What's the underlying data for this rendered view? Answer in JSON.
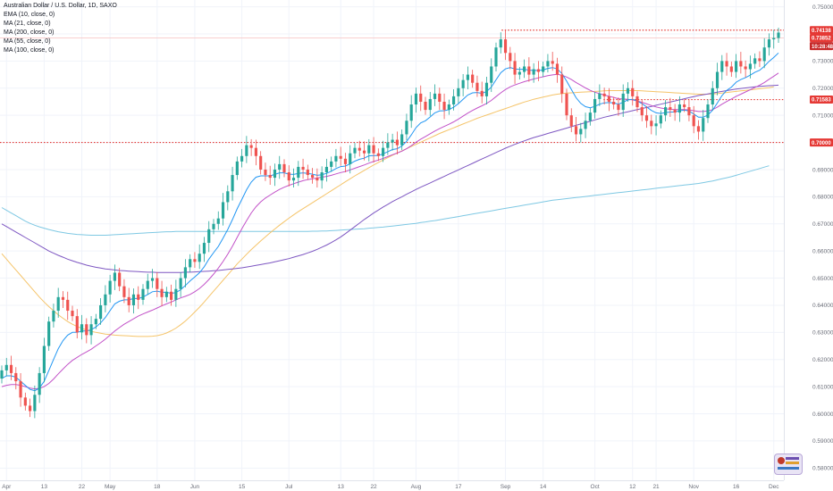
{
  "legend": {
    "title": "Australian Dollar / U.S. Dollar, 1D, SAXO",
    "indicators": [
      "EMA (10, close, 0)",
      "MA (21, close, 0)",
      "MA (200, close, 0)",
      "MA (55, close, 0)",
      "MA (100, close, 0)"
    ]
  },
  "colors": {
    "up": "#26a69a",
    "down": "#ef5350",
    "ema10": "#2196f3",
    "ma21": "#c252c8",
    "ma200": "#7ec8e3",
    "ma55": "#f5c469",
    "ma100": "#7e57c2",
    "level_line": "#e53935"
  },
  "chart_data": {
    "type": "candlestick",
    "title": "Australian Dollar / U.S. Dollar, 1D, SAXO",
    "ylim": [
      0.5755,
      0.7525
    ],
    "y_ticks": [
      "0.75000",
      "0.74000",
      "0.73000",
      "0.72000",
      "0.71000",
      "0.70000",
      "0.69000",
      "0.68000",
      "0.67000",
      "0.66000",
      "0.65000",
      "0.64000",
      "0.63000",
      "0.62000",
      "0.61000",
      "0.60000",
      "0.59000",
      "0.58000"
    ],
    "x_labels": [
      "Apr",
      "13",
      "22",
      "May",
      "18",
      "Jun",
      "15",
      "Jul",
      "13",
      "22",
      "Aug",
      "17",
      "Sep",
      "14",
      "Oct",
      "12",
      "21",
      "Nov",
      "16",
      "Dec"
    ],
    "price_tags": [
      {
        "label": "0.74138",
        "value": 0.74138
      },
      {
        "label": "0.73852",
        "value": 0.73852
      },
      {
        "label": "10:28:48",
        "value": 0.7355
      },
      {
        "label": "0.71583",
        "value": 0.71583
      },
      {
        "label": "0.70000",
        "value": 0.7
      }
    ],
    "levels": [
      0.7414,
      0.7158,
      0.7
    ],
    "closes": [
      0.616,
      0.618,
      0.615,
      0.612,
      0.606,
      0.603,
      0.601,
      0.607,
      0.615,
      0.625,
      0.634,
      0.638,
      0.643,
      0.642,
      0.638,
      0.636,
      0.63,
      0.633,
      0.629,
      0.633,
      0.635,
      0.64,
      0.644,
      0.649,
      0.652,
      0.647,
      0.643,
      0.64,
      0.644,
      0.642,
      0.646,
      0.649,
      0.65,
      0.646,
      0.643,
      0.645,
      0.642,
      0.646,
      0.65,
      0.654,
      0.657,
      0.656,
      0.659,
      0.663,
      0.668,
      0.67,
      0.672,
      0.678,
      0.682,
      0.688,
      0.693,
      0.695,
      0.699,
      0.698,
      0.695,
      0.69,
      0.688,
      0.687,
      0.69,
      0.692,
      0.689,
      0.686,
      0.687,
      0.691,
      0.69,
      0.688,
      0.687,
      0.686,
      0.689,
      0.691,
      0.693,
      0.695,
      0.694,
      0.692,
      0.696,
      0.698,
      0.697,
      0.696,
      0.699,
      0.696,
      0.695,
      0.698,
      0.7,
      0.701,
      0.699,
      0.703,
      0.708,
      0.714,
      0.718,
      0.715,
      0.712,
      0.716,
      0.718,
      0.715,
      0.712,
      0.714,
      0.717,
      0.72,
      0.723,
      0.725,
      0.722,
      0.719,
      0.717,
      0.722,
      0.728,
      0.735,
      0.738,
      0.733,
      0.73,
      0.725,
      0.726,
      0.728,
      0.725,
      0.727,
      0.726,
      0.728,
      0.73,
      0.729,
      0.725,
      0.718,
      0.71,
      0.706,
      0.703,
      0.705,
      0.708,
      0.711,
      0.716,
      0.718,
      0.717,
      0.715,
      0.714,
      0.712,
      0.718,
      0.72,
      0.717,
      0.713,
      0.71,
      0.708,
      0.706,
      0.707,
      0.71,
      0.713,
      0.712,
      0.711,
      0.714,
      0.713,
      0.71,
      0.706,
      0.704,
      0.709,
      0.714,
      0.72,
      0.726,
      0.73,
      0.728,
      0.726,
      0.73,
      0.728,
      0.727,
      0.729,
      0.731,
      0.73,
      0.735,
      0.738,
      0.7385,
      0.7405
    ],
    "ema10": [
      0.613,
      0.614,
      0.614,
      0.6135,
      0.612,
      0.6105,
      0.609,
      0.6085,
      0.6095,
      0.612,
      0.616,
      0.62,
      0.624,
      0.627,
      0.629,
      0.63,
      0.63,
      0.6305,
      0.6305,
      0.631,
      0.632,
      0.6335,
      0.6355,
      0.638,
      0.6405,
      0.6415,
      0.642,
      0.642,
      0.6425,
      0.6425,
      0.643,
      0.644,
      0.645,
      0.6452,
      0.6448,
      0.6448,
      0.6444,
      0.6447,
      0.6457,
      0.6473,
      0.649,
      0.6504,
      0.652,
      0.6542,
      0.657,
      0.6594,
      0.6617,
      0.6647,
      0.6679,
      0.6716,
      0.6755,
      0.679,
      0.6826,
      0.6854,
      0.6872,
      0.6877,
      0.6877,
      0.6877,
      0.6882,
      0.6888,
      0.6888,
      0.6883,
      0.6882,
      0.6886,
      0.6888,
      0.6886,
      0.6883,
      0.6879,
      0.6881,
      0.6886,
      0.6894,
      0.6904,
      0.6911,
      0.6913,
      0.6921,
      0.6931,
      0.6938,
      0.6942,
      0.6951,
      0.6952,
      0.6952,
      0.6958,
      0.6966,
      0.6974,
      0.6977,
      0.6987,
      0.7004,
      0.7028,
      0.7055,
      0.7072,
      0.708,
      0.7094,
      0.7109,
      0.7116,
      0.7117,
      0.7121,
      0.713,
      0.7143,
      0.7159,
      0.7175,
      0.7183,
      0.7184,
      0.7181,
      0.7188,
      0.7204,
      0.7231,
      0.7257,
      0.7271,
      0.7276,
      0.7271,
      0.7269,
      0.727,
      0.7266,
      0.7266,
      0.7265,
      0.7267,
      0.7273,
      0.7276,
      0.7271,
      0.7254,
      0.7226,
      0.7195,
      0.7165,
      0.7144,
      0.7132,
      0.7128,
      0.7133,
      0.7141,
      0.7146,
      0.7147,
      0.7146,
      0.7141,
      0.7148,
      0.7157,
      0.7159,
      0.7153,
      0.7143,
      0.7131,
      0.7118,
      0.7109,
      0.7107,
      0.711,
      0.7112,
      0.7112,
      0.7117,
      0.7119,
      0.7116,
      0.7105,
      0.7093,
      0.7093,
      0.7101,
      0.7119,
      0.7145,
      0.7173,
      0.7192,
      0.7204,
      0.7222,
      0.7232,
      0.7239,
      0.7248,
      0.7259,
      0.7266,
      0.7281,
      0.7299,
      0.7313,
      0.733
    ],
    "ma21": [
      0.61,
      0.6105,
      0.6108,
      0.6108,
      0.6105,
      0.61,
      0.6095,
      0.6092,
      0.6094,
      0.61,
      0.6112,
      0.6128,
      0.6147,
      0.6165,
      0.6182,
      0.6197,
      0.6208,
      0.6219,
      0.6228,
      0.6238,
      0.625,
      0.6262,
      0.6275,
      0.629,
      0.6305,
      0.6318,
      0.633,
      0.634,
      0.635,
      0.636,
      0.6368,
      0.6375,
      0.6382,
      0.639,
      0.6398,
      0.6405,
      0.6412,
      0.642,
      0.6427,
      0.6433,
      0.644,
      0.645,
      0.6462,
      0.6477,
      0.6495,
      0.6515,
      0.6537,
      0.6561,
      0.6588,
      0.6618,
      0.665,
      0.6682,
      0.6712,
      0.674,
      0.6763,
      0.6781,
      0.6795,
      0.6806,
      0.6817,
      0.6827,
      0.6835,
      0.6842,
      0.6848,
      0.6854,
      0.6859,
      0.6863,
      0.6866,
      0.6869,
      0.6872,
      0.6875,
      0.6879,
      0.6884,
      0.6889,
      0.6893,
      0.6899,
      0.6905,
      0.6911,
      0.6917,
      0.6924,
      0.693,
      0.6935,
      0.6941,
      0.6948,
      0.6955,
      0.6961,
      0.6968,
      0.6977,
      0.6988,
      0.7001,
      0.7012,
      0.7022,
      0.7032,
      0.7042,
      0.7051,
      0.7059,
      0.7067,
      0.7076,
      0.7086,
      0.7097,
      0.7108,
      0.7118,
      0.7127,
      0.7135,
      0.7144,
      0.7155,
      0.7169,
      0.7183,
      0.7195,
      0.7205,
      0.7212,
      0.7218,
      0.7224,
      0.7229,
      0.7234,
      0.7238,
      0.7242,
      0.7246,
      0.7249,
      0.7251,
      0.7248,
      0.7241,
      0.7232,
      0.7221,
      0.7211,
      0.7201,
      0.7192,
      0.7185,
      0.718,
      0.7175,
      0.717,
      0.7166,
      0.7161,
      0.716,
      0.7159,
      0.7157,
      0.7153,
      0.7148,
      0.7142,
      0.7136,
      0.7131,
      0.7127,
      0.7124,
      0.7122,
      0.7121,
      0.7121,
      0.7121,
      0.712,
      0.7117,
      0.7114,
      0.7114,
      0.7116,
      0.7121,
      0.713,
      0.7141,
      0.7151,
      0.716,
      0.717,
      0.7178,
      0.7186,
      0.7194,
      0.7203,
      0.7211,
      0.7221,
      0.7233,
      0.7244,
      0.7256
    ],
    "ma200": [
      0.676,
      0.675,
      0.674,
      0.673,
      0.672,
      0.671,
      0.6702,
      0.6695,
      0.6689,
      0.6684,
      0.6679,
      0.6675,
      0.6671,
      0.6668,
      0.6665,
      0.6663,
      0.6661,
      0.666,
      0.6659,
      0.6658,
      0.6658,
      0.6658,
      0.6658,
      0.6659,
      0.666,
      0.6661,
      0.6662,
      0.6663,
      0.6664,
      0.6665,
      0.6666,
      0.6667,
      0.6668,
      0.6669,
      0.667,
      0.6671,
      0.6671,
      0.6672,
      0.6672,
      0.6672,
      0.6672,
      0.6672,
      0.6672,
      0.6672,
      0.6672,
      0.6672,
      0.6672,
      0.6672,
      0.6672,
      0.6672,
      0.6672,
      0.6672,
      0.6672,
      0.6672,
      0.6672,
      0.6672,
      0.6672,
      0.6672,
      0.6672,
      0.6672,
      0.6672,
      0.6672,
      0.6672,
      0.6672,
      0.6672,
      0.6672,
      0.6673,
      0.6673,
      0.6674,
      0.6674,
      0.6675,
      0.6676,
      0.6677,
      0.6678,
      0.6679,
      0.668,
      0.6681,
      0.6682,
      0.6684,
      0.6685,
      0.6687,
      0.6688,
      0.669,
      0.6692,
      0.6694,
      0.6696,
      0.6698,
      0.67,
      0.6702,
      0.6705,
      0.6707,
      0.671,
      0.6712,
      0.6715,
      0.6718,
      0.6721,
      0.6724,
      0.6727,
      0.673,
      0.6733,
      0.6736,
      0.6739,
      0.6742,
      0.6745,
      0.6748,
      0.6751,
      0.6754,
      0.6757,
      0.676,
      0.6763,
      0.6766,
      0.6769,
      0.6772,
      0.6775,
      0.6778,
      0.6781,
      0.6784,
      0.6787,
      0.6789,
      0.6791,
      0.6793,
      0.6795,
      0.6797,
      0.6799,
      0.6801,
      0.6803,
      0.6805,
      0.6807,
      0.6809,
      0.6811,
      0.6813,
      0.6815,
      0.6817,
      0.6819,
      0.6821,
      0.6823,
      0.6825,
      0.6827,
      0.6829,
      0.6831,
      0.6833,
      0.6835,
      0.6837,
      0.6839,
      0.6841,
      0.6843,
      0.6845,
      0.6847,
      0.6849,
      0.6852,
      0.6855,
      0.6858,
      0.6862,
      0.6866,
      0.687,
      0.6874,
      0.6879,
      0.6884,
      0.6889,
      0.6894,
      0.6899,
      0.6904,
      0.6909,
      0.6914
    ],
    "ma55": [
      0.659,
      0.657,
      0.655,
      0.653,
      0.651,
      0.649,
      0.647,
      0.645,
      0.643,
      0.6412,
      0.6395,
      0.638,
      0.6365,
      0.6352,
      0.634,
      0.633,
      0.6322,
      0.6315,
      0.6309,
      0.6304,
      0.63,
      0.6297,
      0.6294,
      0.6292,
      0.629,
      0.6289,
      0.6288,
      0.6287,
      0.6286,
      0.6285,
      0.6285,
      0.6285,
      0.6286,
      0.6288,
      0.6292,
      0.6298,
      0.6306,
      0.6316,
      0.6328,
      0.6342,
      0.6358,
      0.6375,
      0.6393,
      0.6412,
      0.6432,
      0.6452,
      0.6472,
      0.6492,
      0.6512,
      0.6532,
      0.6552,
      0.657,
      0.6588,
      0.6605,
      0.6621,
      0.6637,
      0.6652,
      0.6667,
      0.6681,
      0.6695,
      0.6708,
      0.6721,
      0.6733,
      0.6745,
      0.6756,
      0.6767,
      0.6778,
      0.6789,
      0.68,
      0.6811,
      0.6822,
      0.6833,
      0.6844,
      0.6855,
      0.6866,
      0.6877,
      0.6887,
      0.6897,
      0.6907,
      0.6917,
      0.6926,
      0.6935,
      0.6944,
      0.6953,
      0.6961,
      0.6969,
      0.6977,
      0.6985,
      0.6993,
      0.7001,
      0.7009,
      0.7017,
      0.7025,
      0.7033,
      0.704,
      0.7047,
      0.7054,
      0.7061,
      0.7068,
      0.7075,
      0.7082,
      0.7089,
      0.7095,
      0.7101,
      0.7107,
      0.7113,
      0.7119,
      0.7125,
      0.7131,
      0.7137,
      0.7143,
      0.7149,
      0.7154,
      0.7159,
      0.7163,
      0.7167,
      0.7171,
      0.7175,
      0.7178,
      0.718,
      0.7182,
      0.7183,
      0.7184,
      0.7185,
      0.7186,
      0.7187,
      0.7188,
      0.7189,
      0.719,
      0.7191,
      0.7191,
      0.7191,
      0.7191,
      0.7191,
      0.7191,
      0.7191,
      0.719,
      0.7189,
      0.7188,
      0.7187,
      0.7186,
      0.7185,
      0.7184,
      0.7183,
      0.7182,
      0.7181,
      0.718,
      0.7179,
      0.7178,
      0.7178,
      0.7178,
      0.7179,
      0.718,
      0.7182,
      0.7184,
      0.7186,
      0.7188,
      0.719,
      0.7192,
      0.7194,
      0.7196,
      0.7198,
      0.72,
      0.7202,
      0.7205
    ],
    "ma100": [
      0.67,
      0.669,
      0.668,
      0.667,
      0.666,
      0.665,
      0.664,
      0.663,
      0.662,
      0.661,
      0.66,
      0.6592,
      0.6584,
      0.6577,
      0.657,
      0.6564,
      0.6558,
      0.6553,
      0.6548,
      0.6544,
      0.654,
      0.6537,
      0.6534,
      0.6532,
      0.653,
      0.6528,
      0.6527,
      0.6526,
      0.6525,
      0.6524,
      0.6523,
      0.6522,
      0.6522,
      0.6521,
      0.6521,
      0.6521,
      0.6521,
      0.6521,
      0.6521,
      0.6522,
      0.6522,
      0.6523,
      0.6524,
      0.6525,
      0.6526,
      0.6527,
      0.6528,
      0.653,
      0.6532,
      0.6534,
      0.6536,
      0.6538,
      0.6541,
      0.6544,
      0.6547,
      0.655,
      0.6553,
      0.6556,
      0.656,
      0.6564,
      0.6568,
      0.6572,
      0.6577,
      0.6582,
      0.6587,
      0.6593,
      0.6599,
      0.6606,
      0.6614,
      0.6622,
      0.6631,
      0.6641,
      0.6652,
      0.6664,
      0.6677,
      0.669,
      0.6703,
      0.6716,
      0.6728,
      0.674,
      0.6751,
      0.6762,
      0.6772,
      0.6782,
      0.6791,
      0.68,
      0.6809,
      0.6818,
      0.6827,
      0.6835,
      0.6843,
      0.6851,
      0.6859,
      0.6867,
      0.6875,
      0.6883,
      0.6891,
      0.6899,
      0.6907,
      0.6915,
      0.6923,
      0.6931,
      0.6939,
      0.6947,
      0.6955,
      0.6963,
      0.6971,
      0.6979,
      0.6986,
      0.6993,
      0.7,
      0.7006,
      0.7012,
      0.7018,
      0.7023,
      0.7028,
      0.7033,
      0.7038,
      0.7043,
      0.7048,
      0.7053,
      0.7058,
      0.7063,
      0.7068,
      0.7073,
      0.7078,
      0.7083,
      0.7088,
      0.7093,
      0.7097,
      0.7101,
      0.7105,
      0.7109,
      0.7113,
      0.7117,
      0.7121,
      0.7125,
      0.7129,
      0.7133,
      0.7137,
      0.7141,
      0.7145,
      0.7149,
      0.7153,
      0.7157,
      0.7161,
      0.7165,
      0.7169,
      0.7173,
      0.7176,
      0.7179,
      0.7182,
      0.7185,
      0.7188,
      0.7191,
      0.7194,
      0.7197,
      0.7199,
      0.7201,
      0.7203,
      0.7205,
      0.7207,
      0.7208,
      0.7209,
      0.721,
      0.7211
    ]
  }
}
